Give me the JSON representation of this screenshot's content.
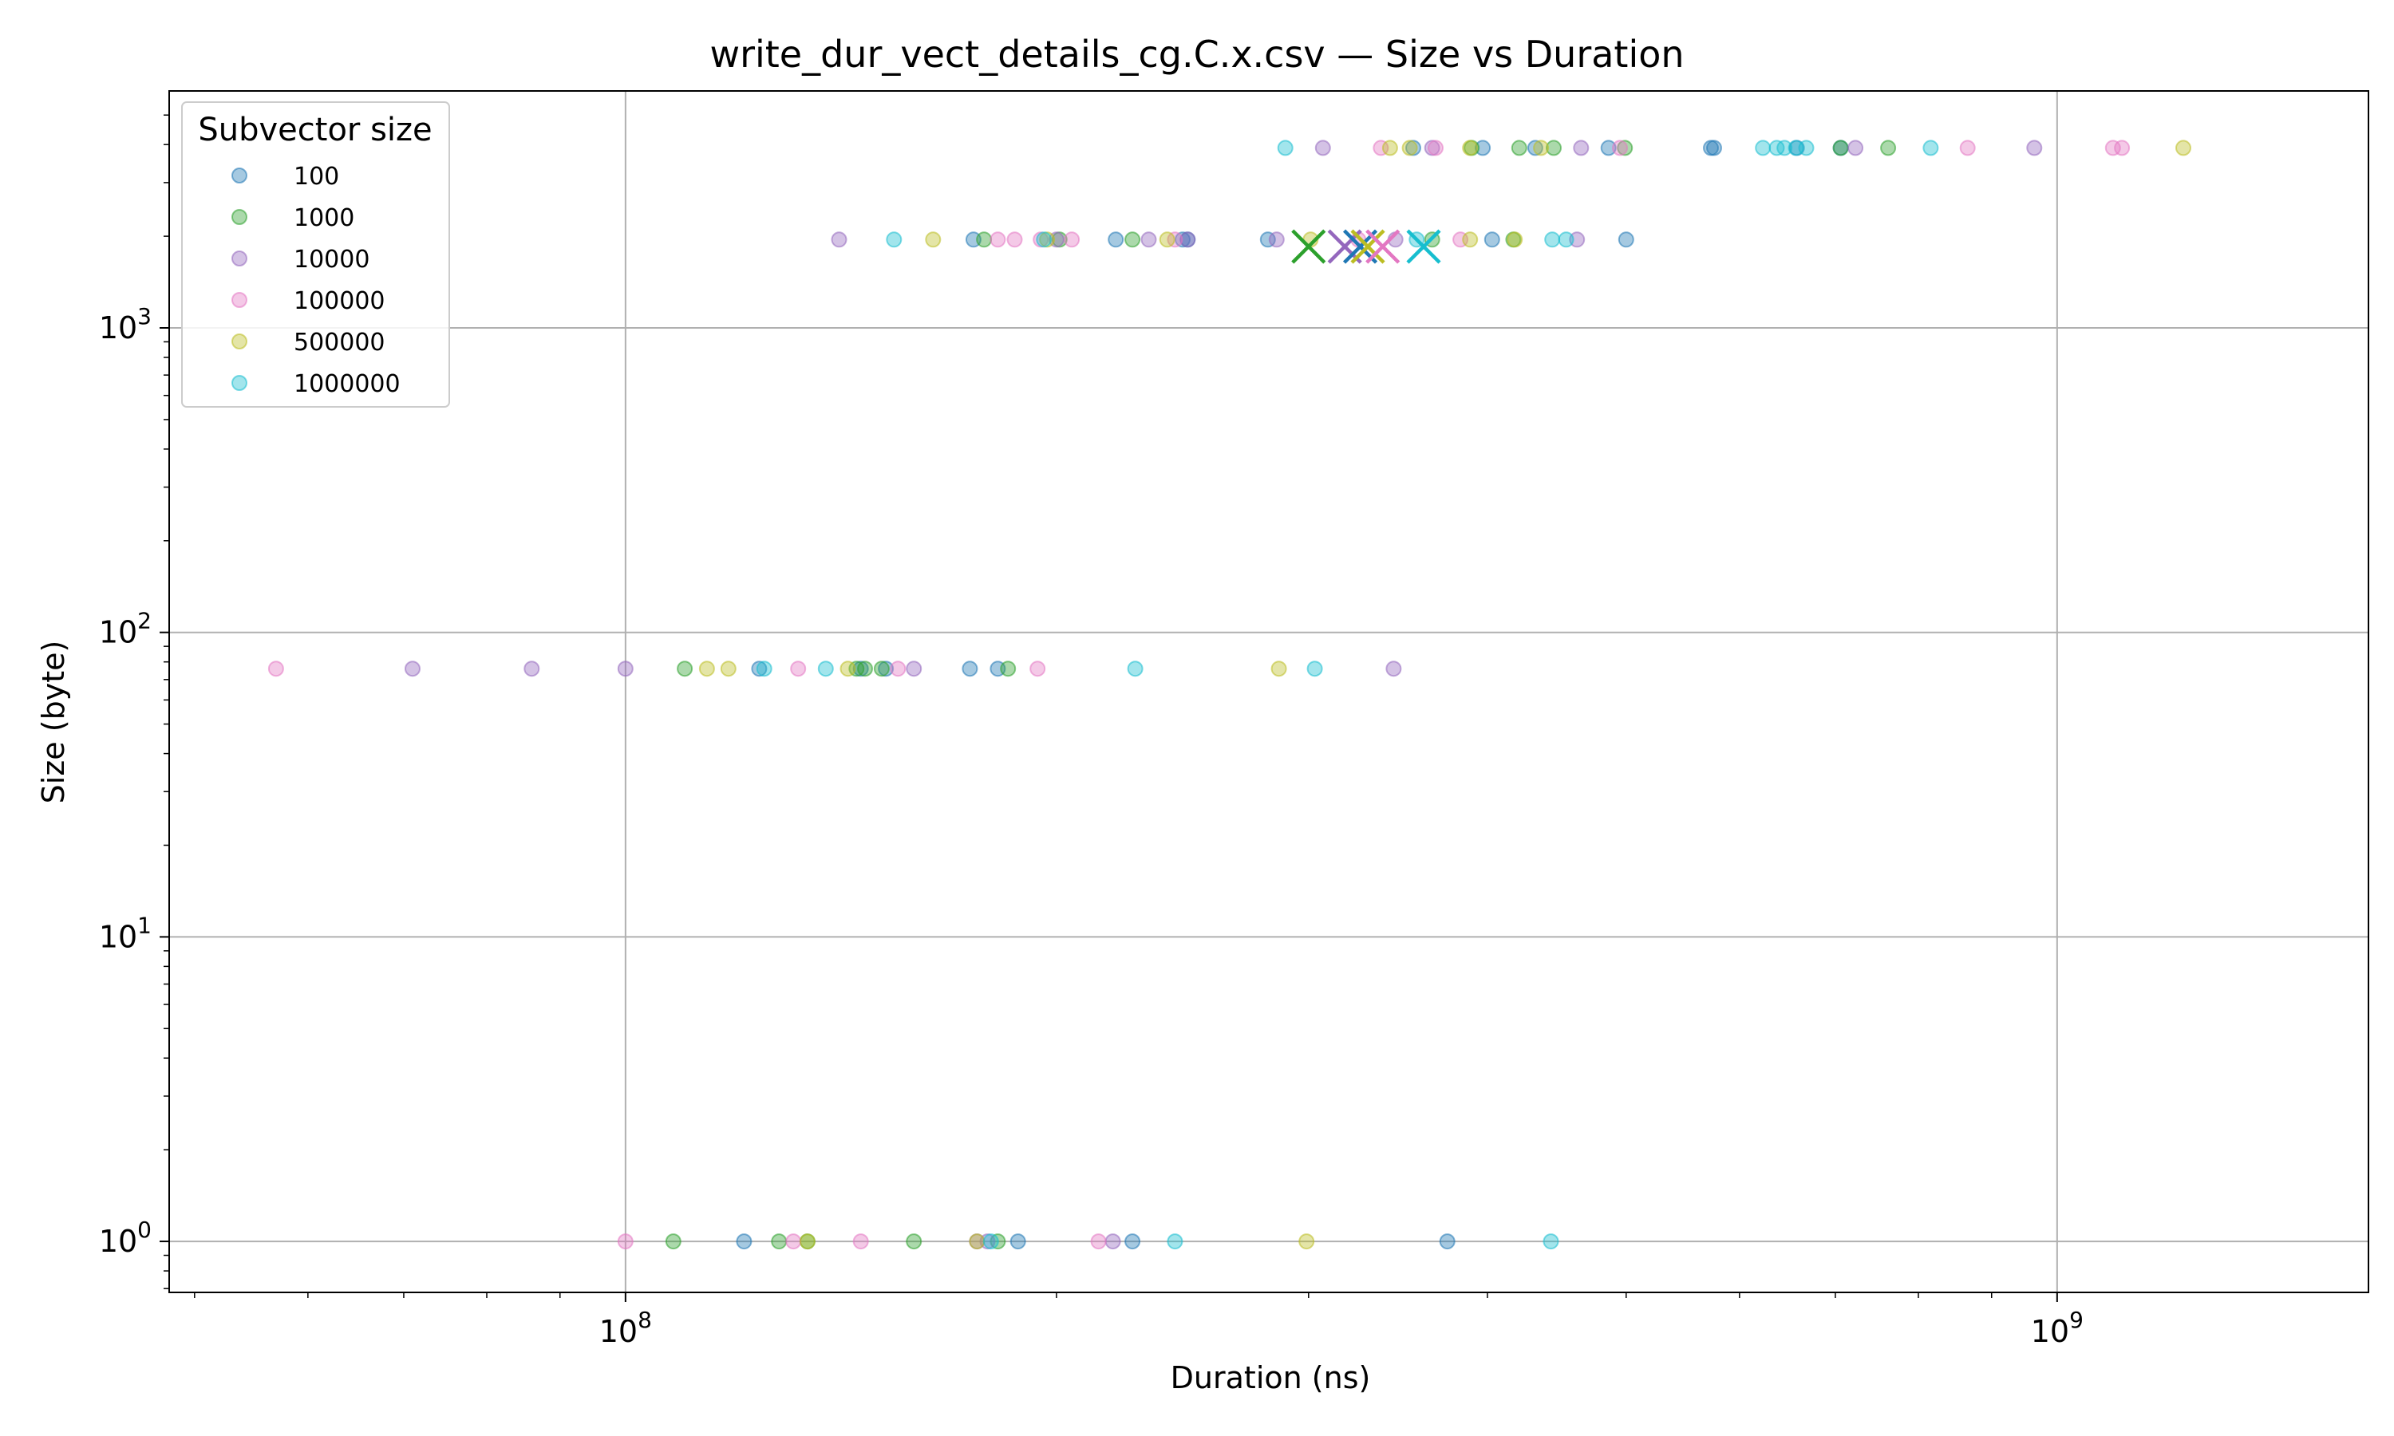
{
  "chart_data": {
    "type": "scatter",
    "title": "write_dur_vect_details_cg.C.x.csv — Size vs Duration",
    "xlabel": "Duration (ns)",
    "ylabel": "Size (byte)",
    "xscale": "log",
    "yscale": "log",
    "xlim": [
      48000000,
      1650000000
    ],
    "ylim": [
      0.68,
      6000
    ],
    "grid": true,
    "legend": {
      "title": "Subvector size",
      "placement": "top-left"
    },
    "x_ticks": [
      {
        "value": 100000000,
        "base": "10",
        "exp": "8"
      },
      {
        "value": 1000000000,
        "base": "10",
        "exp": "9"
      }
    ],
    "y_ticks": [
      {
        "value": 1,
        "base": "10",
        "exp": "0"
      },
      {
        "value": 10,
        "base": "10",
        "exp": "1"
      },
      {
        "value": 100,
        "base": "10",
        "exp": "2"
      },
      {
        "value": 1000,
        "base": "10",
        "exp": "3"
      }
    ],
    "series": [
      {
        "name": "100",
        "color": "#1f77b4",
        "points": [
          [
            121000000,
            1
          ],
          [
            188000000,
            1
          ],
          [
            226000000,
            1
          ],
          [
            375000000,
            1
          ],
          [
            124000000,
            76
          ],
          [
            146000000,
            76
          ],
          [
            152000000,
            76
          ],
          [
            174000000,
            76
          ],
          [
            182000000,
            76
          ],
          [
            175000000,
            1950
          ],
          [
            220000000,
            1950
          ],
          [
            245000000,
            1950
          ],
          [
            247000000,
            1950
          ],
          [
            281000000,
            1950
          ],
          [
            403000000,
            1950
          ],
          [
            500000000,
            1950
          ],
          [
            355000000,
            3900
          ],
          [
            397000000,
            3900
          ],
          [
            432000000,
            3900
          ],
          [
            486000000,
            3900
          ],
          [
            573000000,
            3900
          ],
          [
            576000000,
            3900
          ],
          [
            658000000,
            3900
          ],
          [
            706000000,
            3900
          ]
        ]
      },
      {
        "name": "1000",
        "color": "#2ca02c",
        "points": [
          [
            108000000,
            1
          ],
          [
            128000000,
            1
          ],
          [
            134000000,
            1
          ],
          [
            159000000,
            1
          ],
          [
            182000000,
            1
          ],
          [
            110000000,
            76
          ],
          [
            145000000,
            76
          ],
          [
            147000000,
            76
          ],
          [
            151000000,
            76
          ],
          [
            185000000,
            76
          ],
          [
            178000000,
            1950
          ],
          [
            201000000,
            1950
          ],
          [
            226000000,
            1950
          ],
          [
            366000000,
            1950
          ],
          [
            417000000,
            1950
          ],
          [
            390000000,
            3900
          ],
          [
            421000000,
            3900
          ],
          [
            445000000,
            3900
          ],
          [
            499000000,
            3900
          ],
          [
            706000000,
            3900
          ],
          [
            762000000,
            3900
          ]
        ]
      },
      {
        "name": "10000",
        "color": "#9467bd",
        "points": [
          [
            176000000,
            1
          ],
          [
            179000000,
            1
          ],
          [
            219000000,
            1
          ],
          [
            71000000,
            76
          ],
          [
            86000000,
            76
          ],
          [
            100000000,
            76
          ],
          [
            159000000,
            76
          ],
          [
            344000000,
            76
          ],
          [
            141000000,
            1950
          ],
          [
            200000000,
            1950
          ],
          [
            232000000,
            1950
          ],
          [
            247000000,
            1950
          ],
          [
            285000000,
            1950
          ],
          [
            345000000,
            1950
          ],
          [
            462000000,
            1950
          ],
          [
            307000000,
            3900
          ],
          [
            366000000,
            3900
          ],
          [
            465000000,
            3900
          ],
          [
            723000000,
            3900
          ],
          [
            964000000,
            3900
          ]
        ]
      },
      {
        "name": "100000",
        "color": "#e377c2",
        "points": [
          [
            100000000,
            1
          ],
          [
            131000000,
            1
          ],
          [
            146000000,
            1
          ],
          [
            214000000,
            1
          ],
          [
            57000000,
            76
          ],
          [
            132000000,
            76
          ],
          [
            155000000,
            76
          ],
          [
            194000000,
            76
          ],
          [
            182000000,
            1950
          ],
          [
            187000000,
            1950
          ],
          [
            195000000,
            1950
          ],
          [
            205000000,
            1950
          ],
          [
            242000000,
            1950
          ],
          [
            325000000,
            1950
          ],
          [
            383000000,
            1950
          ],
          [
            337000000,
            3900
          ],
          [
            368000000,
            3900
          ],
          [
            495000000,
            3900
          ],
          [
            866000000,
            3900
          ],
          [
            1094000000,
            3900
          ],
          [
            1110000000,
            3900
          ]
        ]
      },
      {
        "name": "500000",
        "color": "#bcbd22",
        "points": [
          [
            134000000,
            1
          ],
          [
            176000000,
            1
          ],
          [
            299000000,
            1
          ],
          [
            114000000,
            76
          ],
          [
            118000000,
            76
          ],
          [
            143000000,
            76
          ],
          [
            286000000,
            76
          ],
          [
            164000000,
            1950
          ],
          [
            197000000,
            1950
          ],
          [
            239000000,
            1950
          ],
          [
            301000000,
            1950
          ],
          [
            389000000,
            1950
          ],
          [
            418000000,
            1950
          ],
          [
            342000000,
            3900
          ],
          [
            353000000,
            3900
          ],
          [
            389000000,
            3900
          ],
          [
            436000000,
            3900
          ],
          [
            1225000000,
            3900
          ]
        ]
      },
      {
        "name": "1000000",
        "color": "#17becf",
        "points": [
          [
            180000000,
            1
          ],
          [
            242000000,
            1
          ],
          [
            443000000,
            1
          ],
          [
            125000000,
            76
          ],
          [
            138000000,
            76
          ],
          [
            227000000,
            76
          ],
          [
            303000000,
            76
          ],
          [
            154000000,
            1950
          ],
          [
            196000000,
            1950
          ],
          [
            357000000,
            1950
          ],
          [
            444000000,
            1950
          ],
          [
            454000000,
            1950
          ],
          [
            289000000,
            3900
          ],
          [
            623000000,
            3900
          ],
          [
            637000000,
            3900
          ],
          [
            645000000,
            3900
          ],
          [
            657000000,
            3900
          ],
          [
            668000000,
            3900
          ],
          [
            816000000,
            3900
          ]
        ]
      }
    ],
    "mean_markers": [
      {
        "series": "1000",
        "color": "#2ca02c",
        "x": 300000000,
        "y": 1850
      },
      {
        "series": "10000",
        "color": "#9467bd",
        "x": 318000000,
        "y": 1850
      },
      {
        "series": "100",
        "color": "#1f77b4",
        "x": 326000000,
        "y": 1850
      },
      {
        "series": "500000",
        "color": "#bcbd22",
        "x": 330000000,
        "y": 1850
      },
      {
        "series": "100000",
        "color": "#e377c2",
        "x": 338000000,
        "y": 1850
      },
      {
        "series": "1000000",
        "color": "#17becf",
        "x": 361000000,
        "y": 1850
      }
    ]
  }
}
